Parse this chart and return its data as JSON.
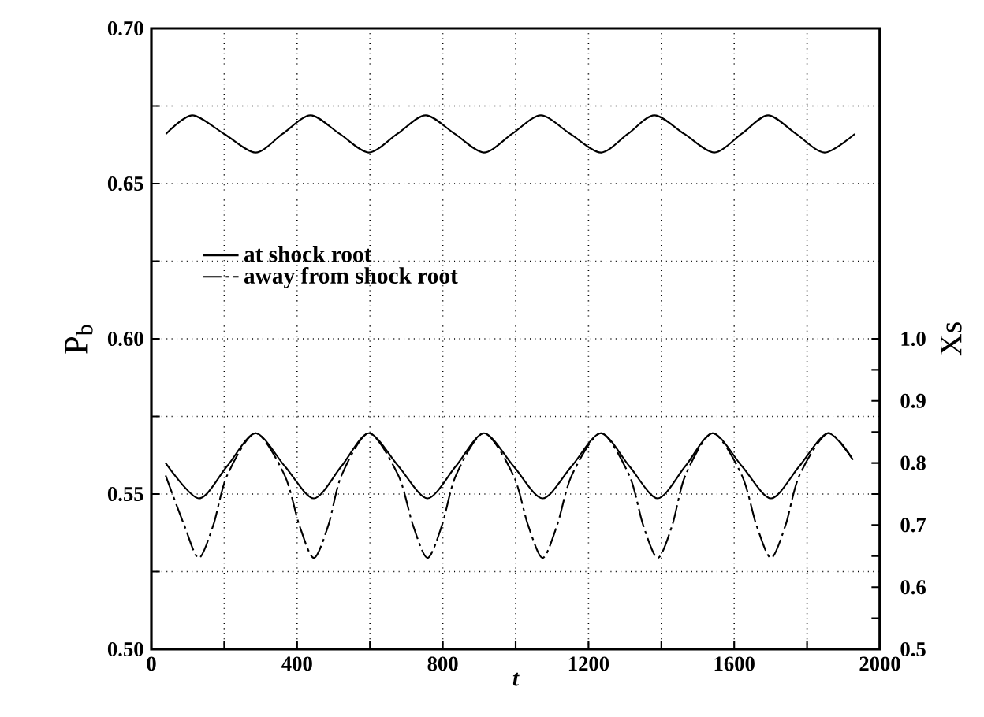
{
  "chart_data": {
    "type": "line",
    "xlabel": "t",
    "ylabel": "P$_{b}$",
    "y2label": "Xs",
    "xlim": [
      0,
      2000
    ],
    "xticks": [
      0,
      {
        "value": 200,
        "label": null
      },
      400,
      {
        "value": 600,
        "label": null
      },
      800,
      {
        "value": 1000,
        "label": null
      },
      1200,
      {
        "value": 1400,
        "label": null
      },
      1600,
      {
        "value": 1800,
        "label": null
      },
      2000
    ],
    "ylim": [
      0.5,
      0.7
    ],
    "yticks": [
      {
        "value": 0.5,
        "label": "0.50"
      },
      {
        "value": 0.525,
        "label": null
      },
      0.55,
      {
        "value": 0.575,
        "label": null
      },
      {
        "value": 0.6,
        "label": "0.60"
      },
      {
        "value": 0.625,
        "label": null
      },
      0.65,
      {
        "value": 0.675,
        "label": null
      },
      {
        "value": 0.7,
        "label": "0.70"
      }
    ],
    "y2lim": [
      0.5,
      1.5
    ],
    "y2ticks": [
      0.5,
      {
        "value": 0.55,
        "label": null
      },
      0.6,
      {
        "value": 0.65,
        "label": null
      },
      0.7,
      {
        "value": 0.75,
        "label": null
      },
      0.8,
      {
        "value": 0.85,
        "label": null
      },
      0.9,
      {
        "value": 0.95,
        "label": null
      },
      {
        "value": 1.0,
        "label": "1.0"
      }
    ],
    "grid": true,
    "legend": "left",
    "marker": "none",
    "series": [
      {
        "color": "#000000",
        "line_style": "solid",
        "x": [
          40,
          112,
          200,
          286,
          360,
          437,
          517,
          597,
          675,
          753,
          833,
          913,
          990,
          1069,
          1150,
          1234,
          1308,
          1381,
          1463,
          1545,
          1620,
          1693,
          1770,
          1848,
          1931
        ],
        "values": [
          0.666,
          0.672,
          0.666,
          0.66,
          0.666,
          0.672,
          0.666,
          0.66,
          0.666,
          0.672,
          0.666,
          0.66,
          0.666,
          0.672,
          0.666,
          0.66,
          0.666,
          0.672,
          0.666,
          0.66,
          0.666,
          0.672,
          0.666,
          0.66,
          0.666
        ]
      },
      {
        "name": "at shock root",
        "color": "#000000",
        "line_style": "solid",
        "axis": "y2",
        "x": [
          39,
          130,
          208,
          286,
          366,
          446,
          522,
          597,
          678,
          758,
          836,
          913,
          994,
          1074,
          1154,
          1234,
          1312,
          1390,
          1466,
          1541,
          1621,
          1701,
          1779,
          1857,
          1926
        ],
        "values": [
          0.8,
          0.743,
          0.795,
          0.848,
          0.795,
          0.743,
          0.795,
          0.848,
          0.795,
          0.743,
          0.795,
          0.848,
          0.795,
          0.743,
          0.795,
          0.848,
          0.795,
          0.743,
          0.795,
          0.848,
          0.795,
          0.743,
          0.795,
          0.848,
          0.805
        ]
      },
      {
        "name": "away from shock root",
        "color": "#000000",
        "line_style": "dashdot",
        "axis": "y2",
        "x": [
          39,
          90,
          130,
          170,
          208,
          286,
          366,
          406,
          446,
          486,
          522,
          597,
          678,
          718,
          758,
          798,
          836,
          913,
          994,
          1034,
          1074,
          1114,
          1154,
          1234,
          1312,
          1350,
          1390,
          1430,
          1466,
          1541,
          1621,
          1661,
          1701,
          1741,
          1779,
          1857,
          1926
        ],
        "values": [
          0.78,
          0.7,
          0.647,
          0.7,
          0.78,
          0.848,
          0.78,
          0.7,
          0.647,
          0.7,
          0.78,
          0.848,
          0.78,
          0.7,
          0.647,
          0.7,
          0.78,
          0.848,
          0.78,
          0.7,
          0.647,
          0.7,
          0.78,
          0.848,
          0.78,
          0.7,
          0.647,
          0.7,
          0.78,
          0.848,
          0.78,
          0.7,
          0.647,
          0.7,
          0.78,
          0.848,
          0.805
        ]
      }
    ]
  }
}
